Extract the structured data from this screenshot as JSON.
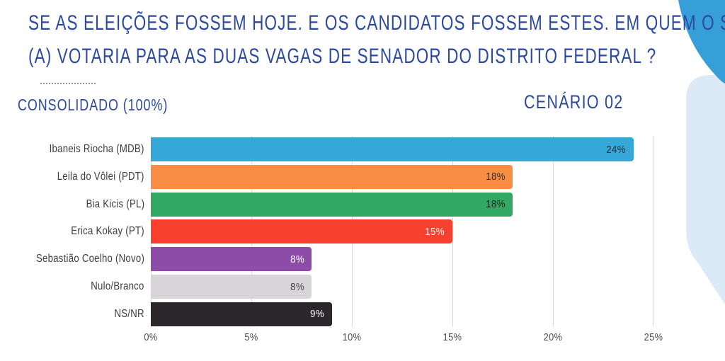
{
  "header": {
    "title_line1": "SE AS ELEIÇÕES FOSSEM HOJE. E OS CANDIDATOS FOSSEM ESTES. EM QUEM O SR.",
    "title_line2": "(A) VOTARIA PARA AS DUAS VAGAS DE SENADOR DO DISTRITO FEDERAL ?",
    "subtitle_left": "CONSOLIDADO (100%)",
    "scenario_label": "CENÁRIO 02"
  },
  "colors": {
    "title_blue": "#2b49a1",
    "accent_blue": "#379fd8",
    "accent_light_blue": "#dce9f6",
    "gridline": "#d9d9d9",
    "dotted_line": "#8d96ba"
  },
  "chart_data": {
    "type": "bar",
    "orientation": "horizontal",
    "title": "",
    "xlabel": "",
    "ylabel": "",
    "categories": [
      "Ibaneis Riocha (MDB)",
      "Leila do Vôlei (PDT)",
      "Bia Kicis (PL)",
      "Erica Kokay (PT)",
      "Sebastião Coelho (Novo)",
      "Nulo/Branco",
      "NS/NR"
    ],
    "values": [
      24,
      18,
      18,
      15,
      8,
      8,
      9
    ],
    "value_labels": [
      "24%",
      "18%",
      "18%",
      "15%",
      "8%",
      "8%",
      "9%"
    ],
    "bar_colors": [
      "#35a7d9",
      "#f98d43",
      "#32a865",
      "#f8402f",
      "#8c4ca8",
      "#d8d5d9",
      "#2b272a"
    ],
    "value_text_colors": [
      "#2f2f2f",
      "#2f2f2f",
      "#1e1e1e",
      "#ffffff",
      "#ffffff",
      "#444444",
      "#ffffff"
    ],
    "xlim": [
      0,
      25
    ],
    "x_ticks": [
      "0%",
      "5%",
      "10%",
      "15%",
      "20%",
      "25%"
    ],
    "x_tick_values": [
      0,
      5,
      10,
      15,
      20,
      25
    ],
    "grid": "vertical",
    "legend": "none"
  }
}
